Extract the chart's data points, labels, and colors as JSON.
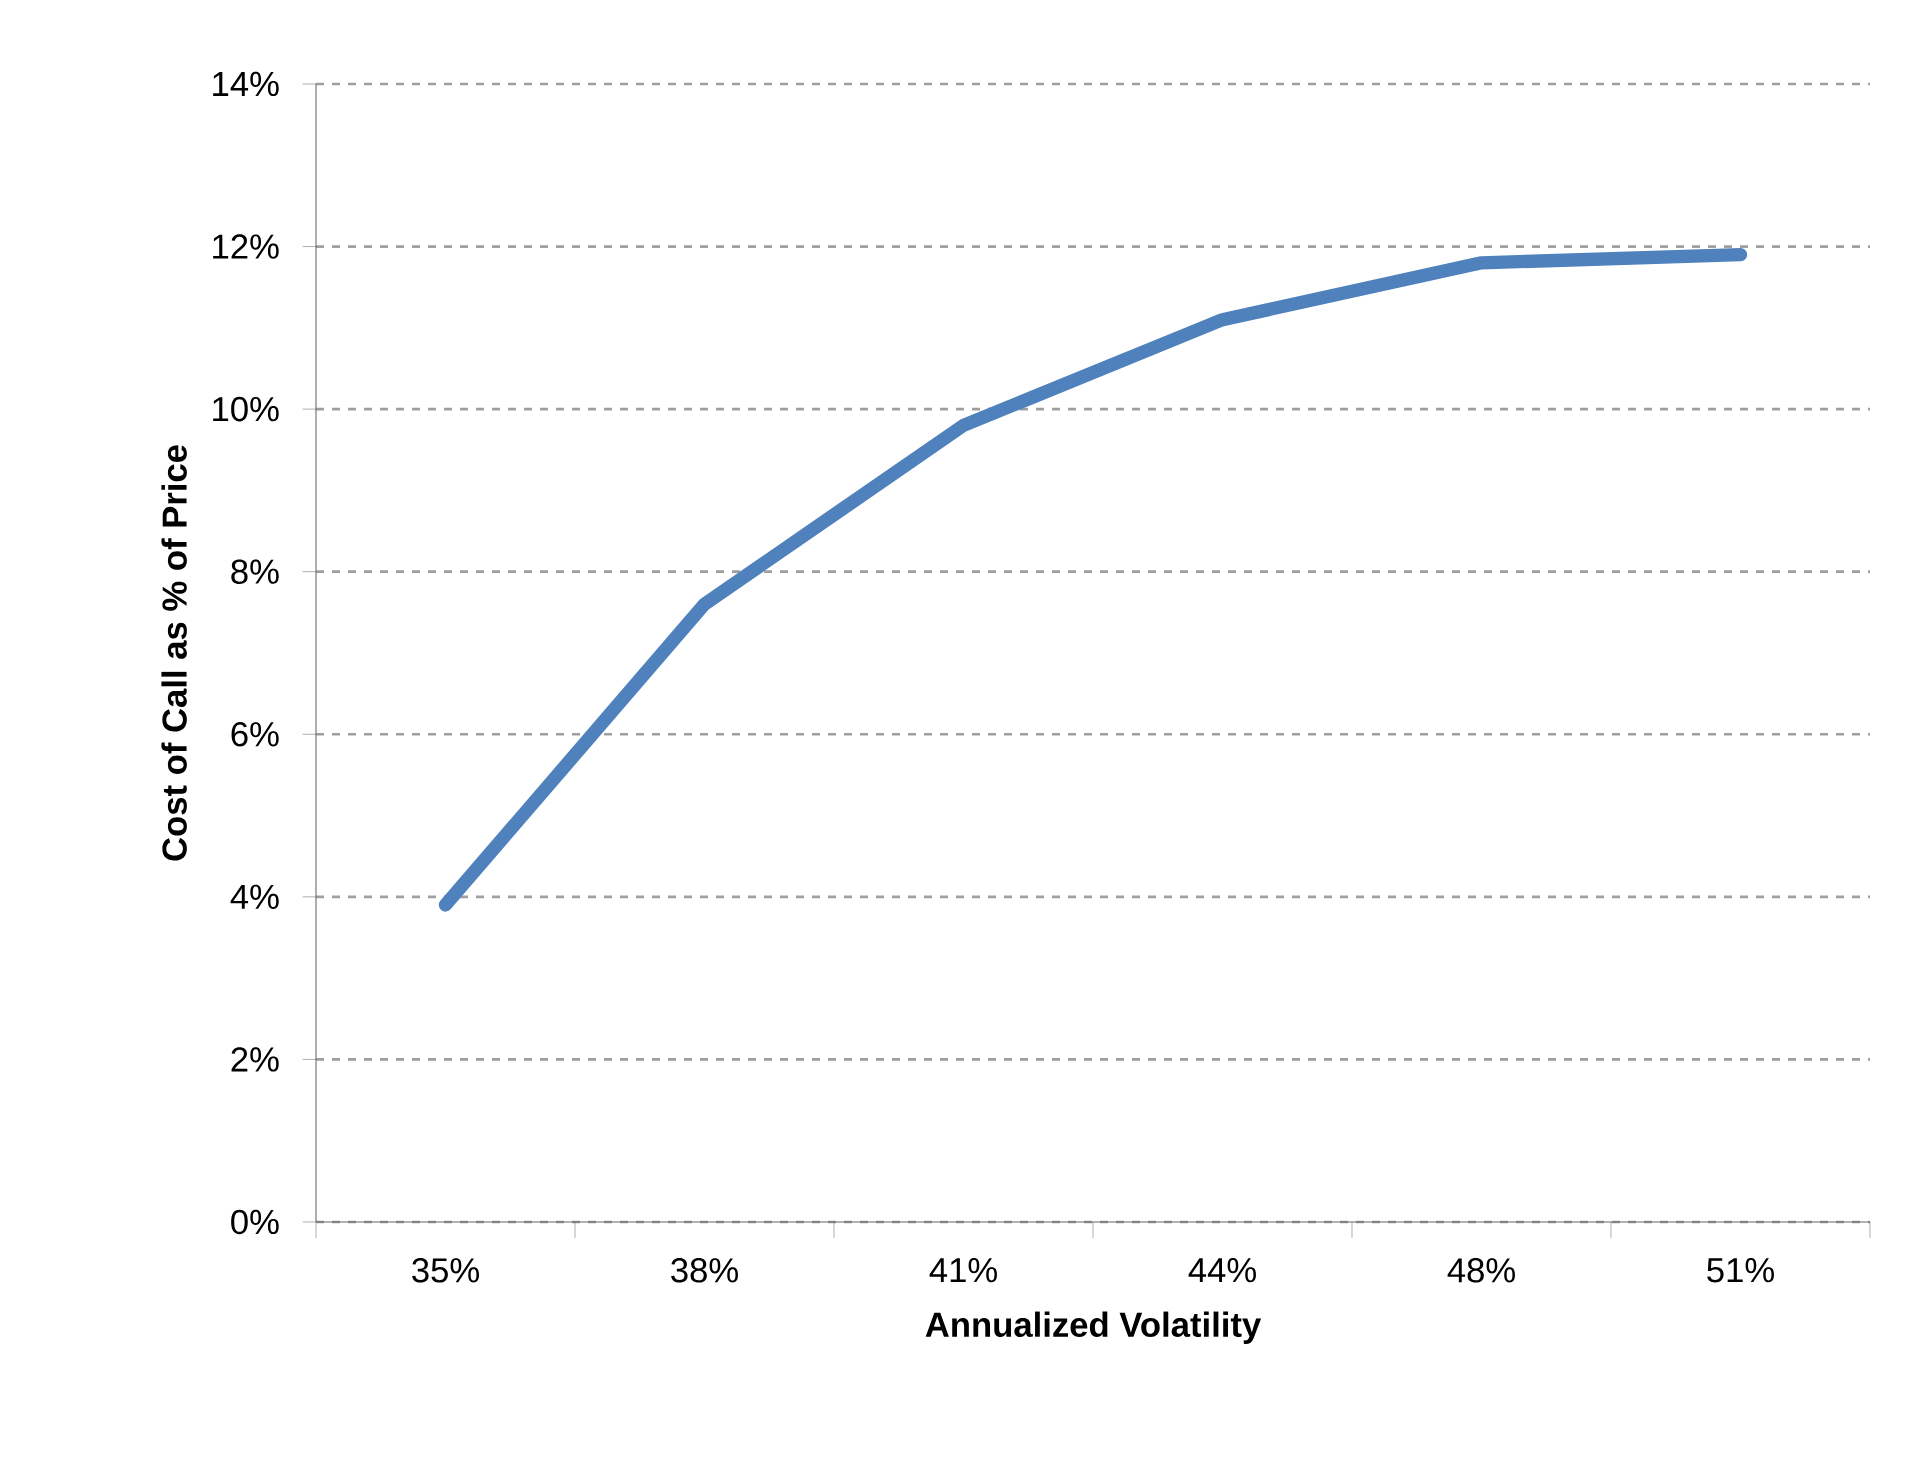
{
  "chart_data": {
    "type": "line",
    "xlabel": "Annualized Volatility",
    "ylabel": "Cost of Call as % of Price",
    "categories": [
      "35%",
      "38%",
      "41%",
      "44%",
      "48%",
      "51%"
    ],
    "series": [
      {
        "color": "#4f81bd",
        "values": [
          3.9,
          7.6,
          9.8,
          11.1,
          11.8,
          11.9
        ]
      }
    ],
    "ylim": [
      0,
      14
    ],
    "yticks": [
      {
        "value": 0,
        "label": "0%"
      },
      {
        "value": 2,
        "label": "2%"
      },
      {
        "value": 4,
        "label": "4%"
      },
      {
        "value": 6,
        "label": "6%"
      },
      {
        "value": 8,
        "label": "8%"
      },
      {
        "value": 10,
        "label": "10%"
      },
      {
        "value": 12,
        "label": "12%"
      },
      {
        "value": 14,
        "label": "14%"
      }
    ],
    "grid": "y",
    "marker": "none",
    "line_style": "solid"
  }
}
